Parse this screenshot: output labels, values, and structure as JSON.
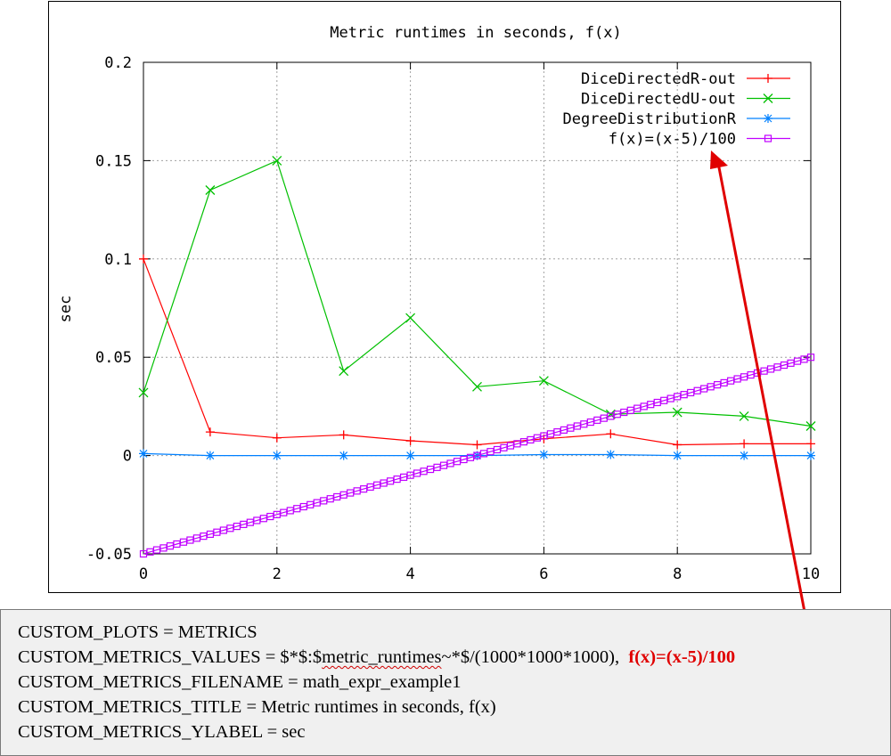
{
  "chart_data": {
    "type": "line",
    "title": "Metric runtimes in seconds, f(x)",
    "xlabel": "",
    "ylabel": "sec",
    "xlim": [
      0,
      10
    ],
    "ylim": [
      -0.05,
      0.2
    ],
    "xticks": [
      0,
      2,
      4,
      6,
      8,
      10
    ],
    "yticks": [
      -0.05,
      0,
      0.05,
      0.1,
      0.15,
      0.2
    ],
    "ytick_labels": [
      "-0.05",
      "0",
      "0.05",
      "0.1",
      "0.15",
      "0.2"
    ],
    "grid": true,
    "legend_position": "top-right",
    "series": [
      {
        "name": "DiceDirectedR-out",
        "color": "#ff0000",
        "marker": "plus",
        "x": [
          0,
          1,
          2,
          3,
          4,
          5,
          6,
          7,
          8,
          9,
          10
        ],
        "y": [
          0.1,
          0.012,
          0.009,
          0.0105,
          0.0075,
          0.0055,
          0.0085,
          0.011,
          0.0055,
          0.006,
          0.006
        ]
      },
      {
        "name": "DiceDirectedU-out",
        "color": "#00c000",
        "marker": "cross",
        "x": [
          0,
          1,
          2,
          3,
          4,
          5,
          6,
          7,
          8,
          9,
          10
        ],
        "y": [
          0.032,
          0.135,
          0.15,
          0.043,
          0.07,
          0.035,
          0.038,
          0.021,
          0.022,
          0.02,
          0.015
        ]
      },
      {
        "name": "DegreeDistributionR",
        "color": "#0080ff",
        "marker": "star",
        "x": [
          0,
          1,
          2,
          3,
          4,
          5,
          6,
          7,
          8,
          9,
          10
        ],
        "y": [
          0.001,
          0,
          0,
          0,
          0,
          0,
          0.0005,
          0.0005,
          0,
          0,
          0
        ]
      },
      {
        "name": "f(x)=(x-5)/100",
        "color": "#c000ff",
        "marker": "square",
        "function": "(x-5)/100",
        "samples": 100
      }
    ]
  },
  "config": {
    "lines": [
      "CUSTOM_PLOTS = METRICS",
      "CUSTOM_METRICS_VALUES = $*$:$",
      "CUSTOM_METRICS_FILENAME = math_expr_example1",
      "CUSTOM_METRICS_TITLE = Metric runtimes in seconds, f(x)",
      "CUSTOM_METRICS_YLABEL = sec"
    ],
    "values_underlined": "metric_runtimes",
    "values_suffix": "~*$/(1000*1000*1000),",
    "values_highlight": "f(x)=(x-5)/100"
  },
  "annotation": {
    "arrow_color": "#e00000"
  }
}
